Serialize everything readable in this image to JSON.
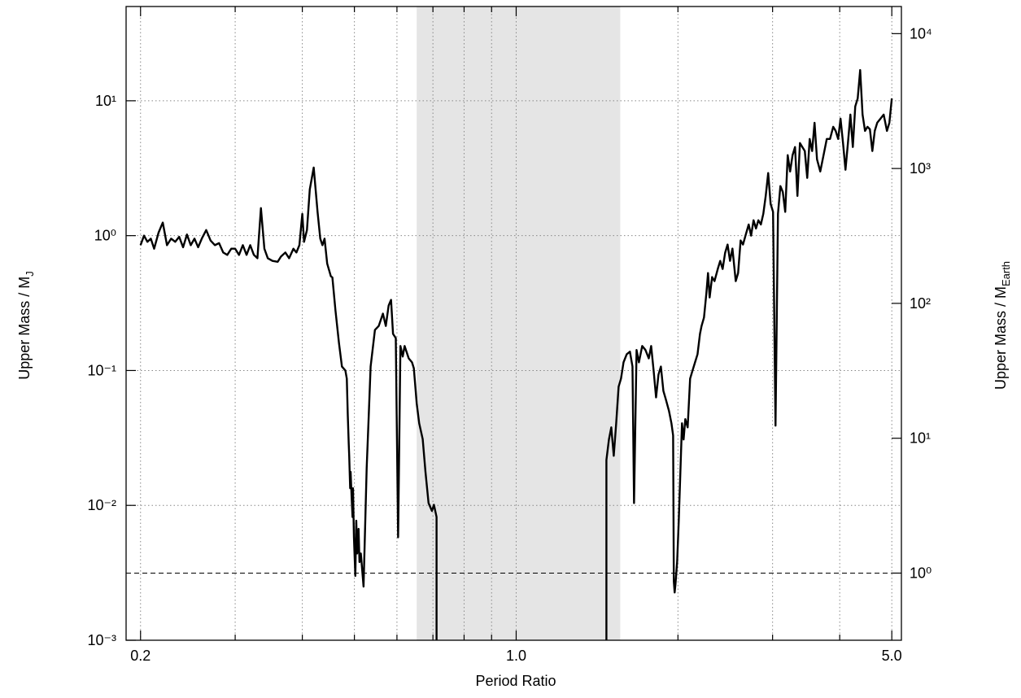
{
  "chart_data": {
    "type": "line",
    "x_label": "Period Ratio",
    "y_label": {
      "text": "Upper Mass / M",
      "sub": "J"
    },
    "y2_label": {
      "text": "Upper Mass / M",
      "sub": "Earth"
    },
    "xscale": "log",
    "yscale": "log",
    "y2scale": "log",
    "xlim": [
      0.188,
      5.21
    ],
    "xticks": [
      0.2,
      {
        "value": 1,
        "label": "1.0"
      },
      {
        "value": 5,
        "label": "5.0"
      }
    ],
    "xminorticks": [
      0.3,
      0.4,
      0.5,
      0.6,
      0.7,
      0.8,
      0.9,
      2,
      3,
      4
    ],
    "ylim": [
      0.001,
      50
    ],
    "yticks": [
      {
        "value": 0.001,
        "label": "10⁻³"
      },
      {
        "value": 0.01,
        "label": "10⁻²"
      },
      {
        "value": 0.1,
        "label": "10⁻¹"
      },
      {
        "value": 1,
        "label": "10⁰"
      },
      {
        "value": 10,
        "label": "10¹"
      }
    ],
    "y2lim": [
      0.3178,
      15890
    ],
    "y2ticks": [
      {
        "value": 1,
        "label": "10⁰"
      },
      {
        "value": 10,
        "label": "10¹"
      },
      {
        "value": 100,
        "label": "10²"
      },
      {
        "value": 1000,
        "label": "10³"
      },
      {
        "value": 10000,
        "label": "10⁴"
      }
    ],
    "grid": true,
    "color": "#000000",
    "shaded_region": [
      0.653,
      1.562
    ],
    "reference_line": 0.003146,
    "x": [
      0.2,
      0.203,
      0.206,
      0.209,
      0.212,
      0.216,
      0.22,
      0.224,
      0.228,
      0.232,
      0.236,
      0.24,
      0.244,
      0.248,
      0.252,
      0.256,
      0.26,
      0.265,
      0.27,
      0.275,
      0.28,
      0.285,
      0.29,
      0.295,
      0.3,
      0.305,
      0.31,
      0.315,
      0.32,
      0.325,
      0.33,
      0.335,
      0.34,
      0.345,
      0.352,
      0.36,
      0.365,
      0.372,
      0.378,
      0.385,
      0.39,
      0.395,
      0.4,
      0.403,
      0.408,
      0.413,
      0.42,
      0.427,
      0.432,
      0.436,
      0.44,
      0.445,
      0.452,
      0.455,
      0.461,
      0.468,
      0.474,
      0.481,
      0.484,
      0.486,
      0.488,
      0.489,
      0.491,
      0.492,
      0.494,
      0.496,
      0.497,
      0.499,
      0.502,
      0.504,
      0.506,
      0.509,
      0.511,
      0.514,
      0.52,
      0.527,
      0.531,
      0.536,
      0.546,
      0.555,
      0.565,
      0.572,
      0.579,
      0.585,
      0.59,
      0.597,
      0.603,
      0.609,
      0.615,
      0.62,
      0.631,
      0.64,
      0.645,
      0.653,
      0.66,
      0.67,
      0.678,
      0.687,
      0.697,
      0.703,
      0.711,
      0.711,
      1.0,
      1.472,
      1.472,
      1.488,
      1.503,
      1.519,
      1.535,
      1.551,
      1.567,
      1.584,
      1.606,
      1.628,
      1.646,
      1.657,
      1.675,
      1.692,
      1.716,
      1.74,
      1.765,
      1.783,
      1.802,
      1.821,
      1.84,
      1.859,
      1.879,
      1.898,
      1.925,
      1.945,
      1.959,
      1.965,
      1.972,
      1.979,
      1.993,
      2.007,
      2.021,
      2.035,
      2.049,
      2.064,
      2.085,
      2.107,
      2.129,
      2.152,
      2.175,
      2.198,
      2.213,
      2.236,
      2.259,
      2.275,
      2.291,
      2.315,
      2.339,
      2.372,
      2.397,
      2.422,
      2.448,
      2.474,
      2.5,
      2.526,
      2.562,
      2.588,
      2.616,
      2.643,
      2.671,
      2.708,
      2.736,
      2.765,
      2.794,
      2.823,
      2.853,
      2.883,
      2.913,
      2.944,
      2.975,
      3.006,
      3.038,
      3.07,
      3.102,
      3.134,
      3.167,
      3.201,
      3.234,
      3.268,
      3.303,
      3.337,
      3.373,
      3.408,
      3.444,
      3.48,
      3.517,
      3.554,
      3.591,
      3.629,
      3.68,
      3.732,
      3.784,
      3.837,
      3.89,
      3.931,
      3.973,
      4.014,
      4.057,
      4.1,
      4.143,
      4.187,
      4.231,
      4.275,
      4.32,
      4.366,
      4.411,
      4.458,
      4.505,
      4.552,
      4.6,
      4.648,
      4.697,
      4.763,
      4.829,
      4.897,
      4.948,
      5.0
    ],
    "values": [
      0.85,
      1.0,
      0.9,
      0.95,
      0.8,
      1.05,
      1.25,
      0.85,
      0.95,
      0.9,
      0.98,
      0.82,
      1.02,
      0.85,
      0.95,
      0.82,
      0.95,
      1.1,
      0.92,
      0.85,
      0.88,
      0.75,
      0.72,
      0.8,
      0.8,
      0.72,
      0.85,
      0.72,
      0.85,
      0.72,
      0.68,
      1.6,
      0.8,
      0.68,
      0.65,
      0.64,
      0.7,
      0.75,
      0.68,
      0.8,
      0.75,
      0.85,
      1.45,
      0.9,
      1.1,
      2.2,
      3.2,
      1.5,
      0.95,
      0.85,
      0.95,
      0.62,
      0.5,
      0.49,
      0.28,
      0.16,
      0.107,
      0.1,
      0.087,
      0.047,
      0.0287,
      0.0233,
      0.0134,
      0.0177,
      0.0117,
      0.0082,
      0.0134,
      0.0058,
      0.003,
      0.0077,
      0.0044,
      0.0067,
      0.0038,
      0.0044,
      0.0025,
      0.0189,
      0.0406,
      0.107,
      0.2,
      0.214,
      0.264,
      0.214,
      0.303,
      0.334,
      0.187,
      0.174,
      0.0058,
      0.152,
      0.127,
      0.152,
      0.123,
      0.115,
      0.104,
      0.057,
      0.0406,
      0.031,
      0.0177,
      0.0104,
      0.0091,
      0.0101,
      0.0082,
      0.001,
      null,
      0.001,
      0.0217,
      0.0308,
      0.0379,
      0.0233,
      0.0406,
      0.0759,
      0.087,
      0.115,
      0.132,
      0.138,
      0.107,
      0.0104,
      0.142,
      0.115,
      0.152,
      0.142,
      0.123,
      0.152,
      0.1,
      0.0632,
      0.0933,
      0.107,
      0.0706,
      0.0615,
      0.05,
      0.0406,
      0.033,
      0.00272,
      0.00226,
      0.00261,
      0.0038,
      0.0077,
      0.0177,
      0.0406,
      0.0308,
      0.0436,
      0.0379,
      0.087,
      0.1,
      0.115,
      0.132,
      0.187,
      0.214,
      0.247,
      0.373,
      0.528,
      0.348,
      0.493,
      0.46,
      0.566,
      0.65,
      0.566,
      0.746,
      0.859,
      0.65,
      0.802,
      0.46,
      0.528,
      0.921,
      0.859,
      1.0,
      1.21,
      1.0,
      1.3,
      1.13,
      1.3,
      1.21,
      1.45,
      1.97,
      2.91,
      1.72,
      1.5,
      0.039,
      1.45,
      2.33,
      2.11,
      1.5,
      3.95,
      2.99,
      3.95,
      4.54,
      1.97,
      4.86,
      4.54,
      4.24,
      2.68,
      5.21,
      4.24,
      6.87,
      3.68,
      2.99,
      3.95,
      5.21,
      5.21,
      6.41,
      5.98,
      5.21,
      7.37,
      4.86,
      3.08,
      4.86,
      7.9,
      4.54,
      9.08,
      10.4,
      16.9,
      7.9,
      5.98,
      6.41,
      6.15,
      4.24,
      5.98,
      6.87,
      7.37,
      7.9,
      5.98,
      6.87,
      10.4
    ]
  }
}
